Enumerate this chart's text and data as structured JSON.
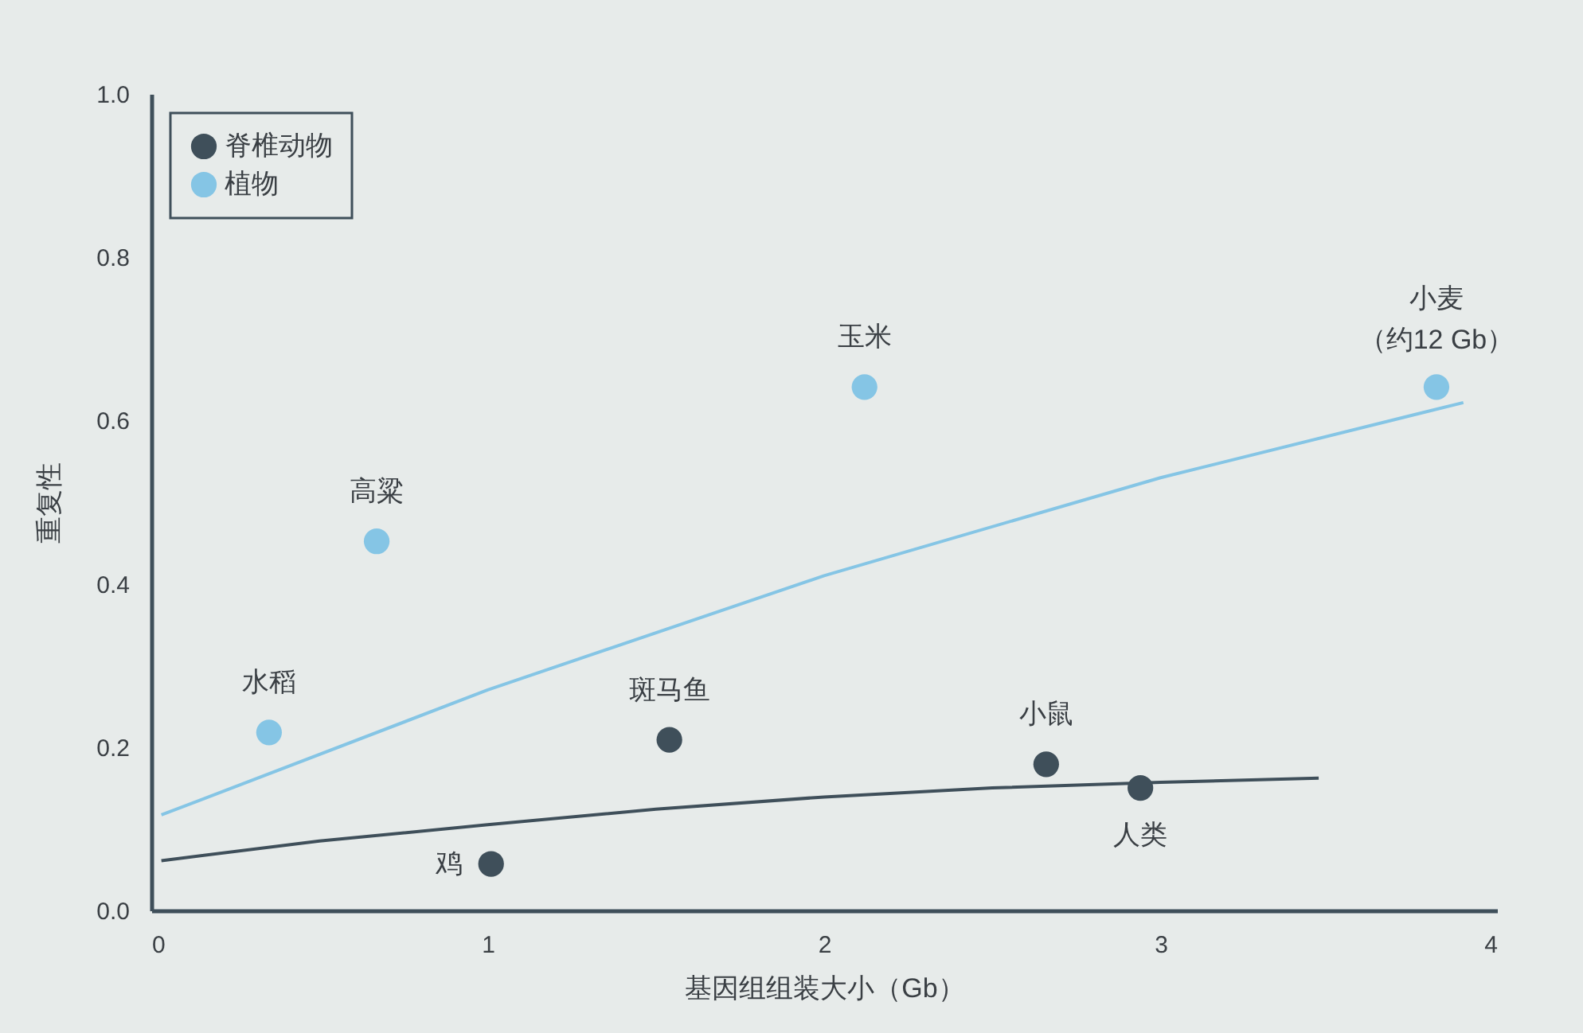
{
  "chart_data": {
    "type": "scatter",
    "xlabel": "基因组组装大小（Gb）",
    "ylabel": "重复性",
    "xlim": [
      0,
      4
    ],
    "xticks": [
      0,
      1,
      2,
      3,
      4
    ],
    "ylim": [
      0,
      1
    ],
    "yticks": [
      {
        "value": 0,
        "label": "0.0"
      },
      0.2,
      0.4,
      0.6,
      0.8,
      {
        "value": 1,
        "label": "1.0"
      }
    ],
    "grid": false,
    "legend": "top left",
    "marker": "circle",
    "series": [
      {
        "name": "脊椎动物",
        "color": "#3f4f5a",
        "x": [
          1.01,
          1.54,
          2.66,
          2.94
        ],
        "values": [
          0.057,
          0.209,
          0.179,
          0.15
        ]
      },
      {
        "name": "植物",
        "color": "#85c5e5",
        "x": [
          0.35,
          0.67,
          2.12,
          3.82
        ],
        "values": [
          0.218,
          0.452,
          0.641,
          0.641
        ]
      },
      {
        "type": "line",
        "marker": "none",
        "color": "#3f4f5a",
        "x": [
          0.03,
          0.5,
          1,
          1.5,
          2,
          2.5,
          3,
          3.47
        ],
        "values": [
          0.061,
          0.085,
          0.105,
          0.124,
          0.139,
          0.15,
          0.157,
          0.162
        ]
      },
      {
        "type": "line",
        "marker": "none",
        "color": "#85c5e5",
        "x": [
          0.03,
          1,
          2,
          3,
          3.9
        ],
        "values": [
          0.117,
          0.27,
          0.41,
          0.53,
          0.622
        ]
      }
    ],
    "annotations": [
      {
        "text": "鸡",
        "x": 1.01,
        "y": 0.057
      },
      {
        "text": "斑马鱼",
        "x": 1.54,
        "y": 0.209
      },
      {
        "text": "小鼠",
        "x": 2.66,
        "y": 0.179
      },
      {
        "text": "人类",
        "x": 2.94,
        "y": 0.15
      },
      {
        "text": "水稻",
        "x": 0.35,
        "y": 0.218
      },
      {
        "text": "高粱",
        "x": 0.67,
        "y": 0.452
      },
      {
        "text": "玉米",
        "x": 2.12,
        "y": 0.641
      },
      {
        "text": "小麦",
        "x": 3.82,
        "y": 0.641
      },
      {
        "text": "（约12 Gb）",
        "x": 3.82,
        "y": 0.641
      }
    ]
  }
}
